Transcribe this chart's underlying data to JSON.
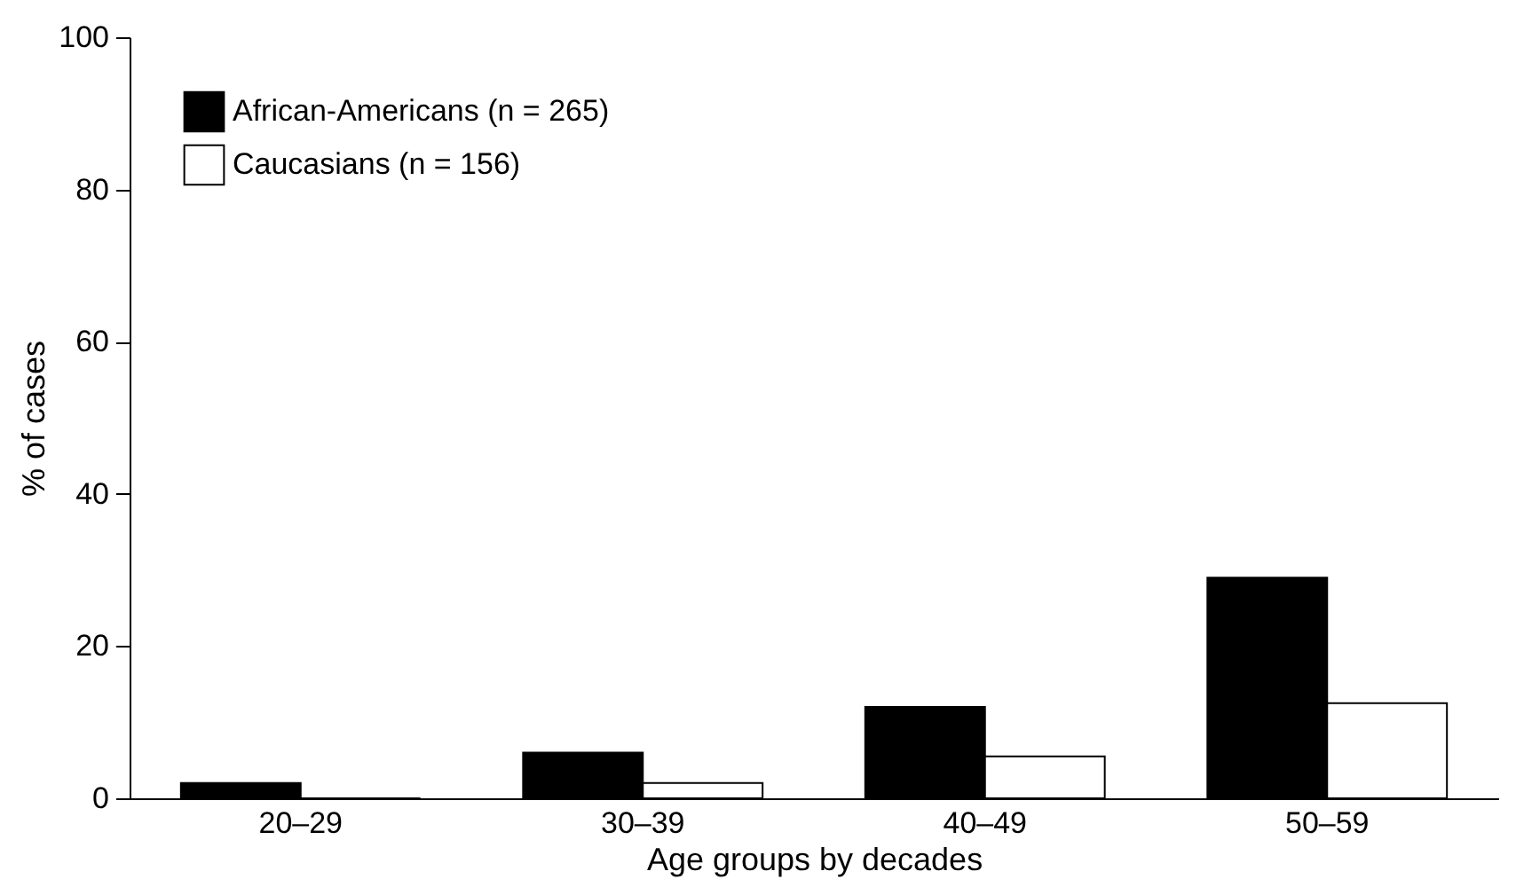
{
  "chart_data": {
    "type": "bar",
    "xlabel": "Age groups by decades",
    "ylabel": "% of cases",
    "categories": [
      "20–29",
      "30–39",
      "40–49",
      "50–59"
    ],
    "series": [
      {
        "name": "African-Americans (n = 265)",
        "color": "#000000",
        "values": [
          2,
          6,
          12,
          29
        ]
      },
      {
        "name": "Caucasians (n = 156)",
        "color": "#ffffff",
        "values": [
          0,
          2,
          5.5,
          12.5
        ]
      }
    ],
    "ylim": [
      0,
      100
    ],
    "yticks": [
      0,
      20,
      40,
      60,
      80,
      100
    ],
    "grid": false,
    "legend": "top left"
  }
}
